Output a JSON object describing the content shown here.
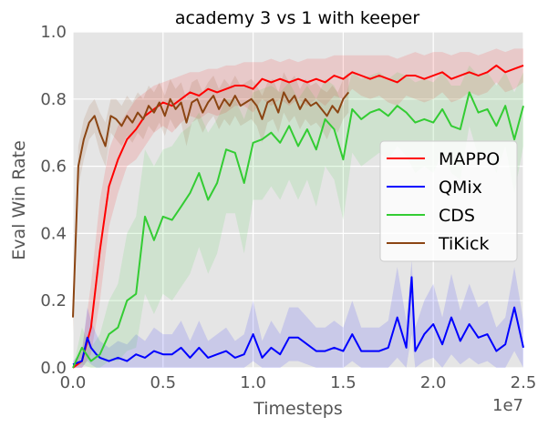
{
  "chart_data": {
    "type": "line",
    "title": "academy 3 vs 1 with keeper",
    "xlabel": "Timesteps",
    "ylabel": "Eval Win Rate",
    "x_scale_label": "1e7",
    "xlim": [
      0,
      2.5
    ],
    "ylim": [
      0,
      1.0
    ],
    "x_ticks": [
      0.0,
      0.5,
      1.0,
      1.5,
      2.0,
      2.5
    ],
    "x_tick_labels": [
      "0.0",
      "0.5",
      "1.0",
      "1.5",
      "2.0",
      "2.5"
    ],
    "y_ticks": [
      0.0,
      0.2,
      0.4,
      0.6,
      0.8,
      1.0
    ],
    "y_tick_labels": [
      "0.0",
      "0.2",
      "0.4",
      "0.6",
      "0.8",
      "1.0"
    ],
    "grid": true,
    "legend_position": "center-right",
    "series": [
      {
        "name": "MAPPO",
        "color": "#ff0000",
        "x": [
          0.0,
          0.05,
          0.1,
          0.15,
          0.2,
          0.25,
          0.3,
          0.35,
          0.4,
          0.45,
          0.5,
          0.55,
          0.6,
          0.65,
          0.7,
          0.75,
          0.8,
          0.85,
          0.9,
          0.95,
          1.0,
          1.05,
          1.1,
          1.15,
          1.2,
          1.25,
          1.3,
          1.35,
          1.4,
          1.45,
          1.5,
          1.55,
          1.6,
          1.65,
          1.7,
          1.75,
          1.8,
          1.85,
          1.9,
          1.95,
          2.0,
          2.05,
          2.1,
          2.15,
          2.2,
          2.25,
          2.3,
          2.35,
          2.4,
          2.45,
          2.5
        ],
        "y": [
          0.0,
          0.02,
          0.12,
          0.35,
          0.54,
          0.62,
          0.68,
          0.71,
          0.75,
          0.77,
          0.79,
          0.78,
          0.8,
          0.82,
          0.81,
          0.83,
          0.82,
          0.83,
          0.84,
          0.84,
          0.83,
          0.86,
          0.85,
          0.86,
          0.85,
          0.86,
          0.85,
          0.86,
          0.85,
          0.87,
          0.86,
          0.88,
          0.87,
          0.86,
          0.87,
          0.86,
          0.85,
          0.87,
          0.87,
          0.86,
          0.87,
          0.88,
          0.86,
          0.87,
          0.88,
          0.87,
          0.88,
          0.9,
          0.88,
          0.89,
          0.9
        ],
        "band_upper": [
          0.0,
          0.05,
          0.25,
          0.5,
          0.65,
          0.72,
          0.76,
          0.8,
          0.82,
          0.84,
          0.85,
          0.86,
          0.87,
          0.88,
          0.88,
          0.89,
          0.89,
          0.9,
          0.9,
          0.91,
          0.91,
          0.91,
          0.92,
          0.91,
          0.92,
          0.91,
          0.92,
          0.92,
          0.92,
          0.93,
          0.93,
          0.93,
          0.93,
          0.93,
          0.93,
          0.93,
          0.92,
          0.93,
          0.94,
          0.93,
          0.94,
          0.94,
          0.93,
          0.94,
          0.94,
          0.93,
          0.94,
          0.95,
          0.94,
          0.95,
          0.95
        ],
        "band_lower": [
          0.0,
          0.0,
          0.04,
          0.2,
          0.42,
          0.52,
          0.6,
          0.62,
          0.66,
          0.7,
          0.72,
          0.7,
          0.73,
          0.75,
          0.74,
          0.76,
          0.75,
          0.76,
          0.78,
          0.78,
          0.76,
          0.8,
          0.78,
          0.8,
          0.78,
          0.8,
          0.78,
          0.8,
          0.78,
          0.81,
          0.8,
          0.83,
          0.81,
          0.8,
          0.81,
          0.79,
          0.78,
          0.81,
          0.8,
          0.79,
          0.8,
          0.82,
          0.79,
          0.8,
          0.82,
          0.81,
          0.82,
          0.85,
          0.82,
          0.83,
          0.85
        ]
      },
      {
        "name": "QMix",
        "color": "#0000ff",
        "x": [
          0.0,
          0.05,
          0.08,
          0.1,
          0.13,
          0.15,
          0.2,
          0.25,
          0.3,
          0.35,
          0.4,
          0.45,
          0.5,
          0.55,
          0.6,
          0.65,
          0.7,
          0.75,
          0.8,
          0.85,
          0.9,
          0.95,
          1.0,
          1.05,
          1.1,
          1.15,
          1.2,
          1.25,
          1.3,
          1.35,
          1.4,
          1.45,
          1.5,
          1.55,
          1.6,
          1.65,
          1.7,
          1.75,
          1.8,
          1.85,
          1.88,
          1.9,
          1.95,
          2.0,
          2.05,
          2.1,
          2.15,
          2.2,
          2.25,
          2.3,
          2.35,
          2.4,
          2.45,
          2.5
        ],
        "y": [
          0.01,
          0.02,
          0.09,
          0.06,
          0.04,
          0.03,
          0.02,
          0.03,
          0.02,
          0.04,
          0.03,
          0.05,
          0.04,
          0.04,
          0.06,
          0.03,
          0.06,
          0.03,
          0.04,
          0.05,
          0.03,
          0.04,
          0.1,
          0.03,
          0.06,
          0.04,
          0.09,
          0.09,
          0.07,
          0.05,
          0.05,
          0.06,
          0.05,
          0.1,
          0.05,
          0.05,
          0.05,
          0.06,
          0.15,
          0.06,
          0.27,
          0.05,
          0.1,
          0.13,
          0.07,
          0.15,
          0.08,
          0.13,
          0.09,
          0.1,
          0.05,
          0.07,
          0.18,
          0.06
        ],
        "band_upper": [
          0.02,
          0.05,
          0.18,
          0.14,
          0.1,
          0.08,
          0.06,
          0.08,
          0.07,
          0.1,
          0.08,
          0.12,
          0.1,
          0.1,
          0.14,
          0.08,
          0.14,
          0.08,
          0.1,
          0.12,
          0.08,
          0.1,
          0.2,
          0.08,
          0.14,
          0.1,
          0.18,
          0.18,
          0.15,
          0.12,
          0.12,
          0.14,
          0.12,
          0.2,
          0.12,
          0.12,
          0.12,
          0.14,
          0.3,
          0.14,
          0.32,
          0.12,
          0.2,
          0.25,
          0.15,
          0.28,
          0.17,
          0.25,
          0.18,
          0.2,
          0.12,
          0.15,
          0.3,
          0.14
        ],
        "band_lower": [
          0.0,
          0.0,
          0.02,
          0.01,
          0.0,
          0.0,
          0.0,
          0.0,
          0.0,
          0.0,
          0.0,
          0.0,
          0.0,
          0.0,
          0.0,
          0.0,
          0.0,
          0.0,
          0.0,
          0.0,
          0.0,
          0.0,
          0.02,
          0.0,
          0.0,
          0.0,
          0.02,
          0.02,
          0.01,
          0.0,
          0.0,
          0.0,
          0.0,
          0.02,
          0.0,
          0.0,
          0.0,
          0.0,
          0.03,
          0.0,
          0.1,
          0.0,
          0.02,
          0.03,
          0.0,
          0.04,
          0.01,
          0.03,
          0.01,
          0.02,
          0.0,
          0.0,
          0.05,
          0.0
        ]
      },
      {
        "name": "CDS",
        "color": "#33cc33",
        "x": [
          0.0,
          0.05,
          0.1,
          0.15,
          0.2,
          0.25,
          0.3,
          0.35,
          0.4,
          0.45,
          0.5,
          0.55,
          0.6,
          0.65,
          0.7,
          0.75,
          0.8,
          0.85,
          0.9,
          0.95,
          1.0,
          1.05,
          1.1,
          1.15,
          1.2,
          1.25,
          1.3,
          1.35,
          1.4,
          1.45,
          1.5,
          1.55,
          1.6,
          1.65,
          1.7,
          1.75,
          1.8,
          1.85,
          1.9,
          1.95,
          2.0,
          2.05,
          2.1,
          2.15,
          2.2,
          2.25,
          2.3,
          2.35,
          2.4,
          2.45,
          2.5
        ],
        "y": [
          0.0,
          0.06,
          0.02,
          0.04,
          0.1,
          0.12,
          0.2,
          0.22,
          0.45,
          0.38,
          0.45,
          0.44,
          0.48,
          0.52,
          0.58,
          0.5,
          0.55,
          0.65,
          0.64,
          0.55,
          0.67,
          0.68,
          0.7,
          0.67,
          0.72,
          0.66,
          0.71,
          0.65,
          0.74,
          0.71,
          0.62,
          0.77,
          0.74,
          0.76,
          0.77,
          0.75,
          0.78,
          0.76,
          0.73,
          0.74,
          0.73,
          0.77,
          0.72,
          0.71,
          0.82,
          0.76,
          0.77,
          0.72,
          0.78,
          0.68,
          0.78
        ],
        "band_upper": [
          0.0,
          0.12,
          0.06,
          0.1,
          0.2,
          0.25,
          0.4,
          0.45,
          0.65,
          0.6,
          0.65,
          0.66,
          0.7,
          0.72,
          0.76,
          0.7,
          0.74,
          0.8,
          0.8,
          0.74,
          0.82,
          0.83,
          0.84,
          0.82,
          0.85,
          0.8,
          0.84,
          0.8,
          0.86,
          0.84,
          0.78,
          0.88,
          0.86,
          0.87,
          0.88,
          0.86,
          0.88,
          0.87,
          0.85,
          0.86,
          0.85,
          0.88,
          0.84,
          0.84,
          0.9,
          0.87,
          0.88,
          0.84,
          0.88,
          0.82,
          0.88
        ],
        "band_lower": [
          0.0,
          0.01,
          0.0,
          0.0,
          0.02,
          0.02,
          0.05,
          0.06,
          0.22,
          0.16,
          0.22,
          0.2,
          0.24,
          0.28,
          0.36,
          0.28,
          0.34,
          0.46,
          0.46,
          0.34,
          0.5,
          0.5,
          0.54,
          0.5,
          0.56,
          0.5,
          0.56,
          0.48,
          0.6,
          0.56,
          0.44,
          0.64,
          0.6,
          0.62,
          0.64,
          0.62,
          0.66,
          0.63,
          0.58,
          0.6,
          0.58,
          0.64,
          0.58,
          0.56,
          0.72,
          0.63,
          0.64,
          0.58,
          0.66,
          0.52,
          0.66
        ]
      },
      {
        "name": "TiKick",
        "color": "#8b4513",
        "x": [
          0.0,
          0.03,
          0.06,
          0.09,
          0.12,
          0.15,
          0.18,
          0.21,
          0.24,
          0.27,
          0.3,
          0.33,
          0.36,
          0.39,
          0.42,
          0.45,
          0.48,
          0.51,
          0.54,
          0.57,
          0.6,
          0.63,
          0.66,
          0.69,
          0.72,
          0.75,
          0.78,
          0.81,
          0.84,
          0.87,
          0.9,
          0.93,
          0.96,
          0.99,
          1.02,
          1.05,
          1.08,
          1.11,
          1.14,
          1.17,
          1.2,
          1.23,
          1.26,
          1.29,
          1.32,
          1.35,
          1.38,
          1.41,
          1.44,
          1.47,
          1.5,
          1.53
        ],
        "y": [
          0.15,
          0.6,
          0.68,
          0.73,
          0.75,
          0.7,
          0.66,
          0.75,
          0.74,
          0.72,
          0.75,
          0.73,
          0.76,
          0.74,
          0.78,
          0.76,
          0.79,
          0.75,
          0.8,
          0.77,
          0.79,
          0.73,
          0.79,
          0.8,
          0.76,
          0.79,
          0.81,
          0.77,
          0.8,
          0.78,
          0.81,
          0.78,
          0.79,
          0.8,
          0.78,
          0.74,
          0.79,
          0.8,
          0.76,
          0.82,
          0.79,
          0.81,
          0.77,
          0.8,
          0.78,
          0.79,
          0.77,
          0.75,
          0.78,
          0.76,
          0.8,
          0.82
        ],
        "band_upper": [
          0.2,
          0.66,
          0.74,
          0.78,
          0.8,
          0.76,
          0.73,
          0.8,
          0.8,
          0.78,
          0.81,
          0.79,
          0.82,
          0.8,
          0.84,
          0.82,
          0.85,
          0.81,
          0.86,
          0.83,
          0.85,
          0.8,
          0.85,
          0.86,
          0.82,
          0.85,
          0.87,
          0.83,
          0.86,
          0.84,
          0.87,
          0.84,
          0.85,
          0.86,
          0.84,
          0.81,
          0.85,
          0.86,
          0.82,
          0.88,
          0.85,
          0.87,
          0.83,
          0.86,
          0.84,
          0.85,
          0.83,
          0.82,
          0.84,
          0.82,
          0.86,
          0.88
        ],
        "band_lower": [
          0.1,
          0.54,
          0.62,
          0.68,
          0.7,
          0.64,
          0.6,
          0.7,
          0.68,
          0.66,
          0.69,
          0.67,
          0.7,
          0.68,
          0.72,
          0.7,
          0.73,
          0.69,
          0.74,
          0.71,
          0.73,
          0.66,
          0.73,
          0.74,
          0.7,
          0.73,
          0.75,
          0.71,
          0.74,
          0.72,
          0.75,
          0.72,
          0.73,
          0.74,
          0.72,
          0.67,
          0.73,
          0.74,
          0.7,
          0.76,
          0.73,
          0.75,
          0.71,
          0.74,
          0.72,
          0.73,
          0.71,
          0.68,
          0.72,
          0.7,
          0.74,
          0.76
        ]
      }
    ]
  }
}
